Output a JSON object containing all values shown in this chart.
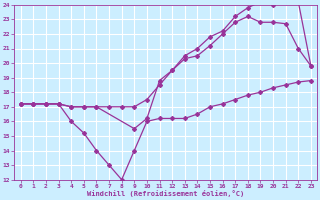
{
  "xlabel": "Windchill (Refroidissement éolien,°C)",
  "background_color": "#cceeff",
  "grid_color": "#ffffff",
  "line_color": "#993399",
  "xlim": [
    -0.5,
    23.5
  ],
  "ylim": [
    12,
    24
  ],
  "yticks": [
    12,
    13,
    14,
    15,
    16,
    17,
    18,
    19,
    20,
    21,
    22,
    23,
    24
  ],
  "xticks": [
    0,
    1,
    2,
    3,
    4,
    5,
    6,
    7,
    8,
    9,
    10,
    11,
    12,
    13,
    14,
    15,
    16,
    17,
    18,
    19,
    20,
    21,
    22,
    23
  ],
  "series": [
    {
      "x": [
        0,
        1,
        2,
        3,
        4,
        5,
        6,
        7,
        8,
        9,
        10,
        11,
        12,
        13,
        14,
        15,
        16,
        17,
        18,
        19,
        20,
        21,
        22,
        23
      ],
      "y": [
        17.2,
        17.2,
        17.2,
        17.2,
        16.0,
        15.2,
        14.0,
        13.0,
        12.0,
        14.0,
        16.0,
        16.2,
        16.2,
        16.2,
        16.5,
        17.0,
        17.2,
        17.5,
        17.8,
        18.0,
        18.3,
        18.5,
        18.7,
        18.8
      ]
    },
    {
      "x": [
        0,
        1,
        2,
        3,
        4,
        5,
        6,
        7,
        8,
        9,
        10,
        11,
        12,
        13,
        14,
        15,
        16,
        17,
        18,
        19,
        20,
        21,
        22,
        23
      ],
      "y": [
        17.2,
        17.2,
        17.2,
        17.2,
        17.0,
        17.0,
        17.0,
        17.0,
        17.0,
        17.0,
        17.5,
        18.5,
        19.5,
        20.3,
        20.5,
        21.2,
        22.0,
        22.8,
        23.2,
        22.8,
        22.8,
        22.7,
        21.0,
        19.8
      ]
    },
    {
      "x": [
        0,
        1,
        2,
        3,
        4,
        5,
        6,
        9,
        10,
        11,
        12,
        13,
        14,
        15,
        16,
        17,
        18,
        19,
        20,
        21,
        22,
        23
      ],
      "y": [
        17.2,
        17.2,
        17.2,
        17.2,
        17.0,
        17.0,
        17.0,
        15.5,
        16.2,
        18.8,
        19.5,
        20.5,
        21.0,
        21.8,
        22.2,
        23.2,
        23.8,
        24.2,
        24.0,
        24.3,
        24.2,
        19.8
      ]
    }
  ]
}
